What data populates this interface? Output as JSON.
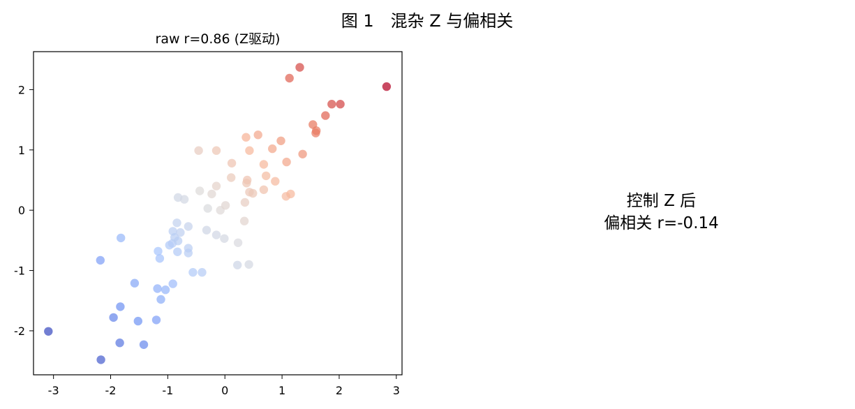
{
  "figure": {
    "title": "图 1　混杂 Z 与偏相关"
  },
  "chart_data": [
    {
      "type": "scatter",
      "title": "raw r=0.86 (Z驱动)",
      "xlabel": "",
      "ylabel": "",
      "xlim": [
        -3.35,
        3.1
      ],
      "ylim": [
        -2.73,
        2.63
      ],
      "xticks": [
        -3,
        -2,
        -1,
        0,
        1,
        2,
        3
      ],
      "yticks": [
        -2,
        -1,
        0,
        1,
        2
      ],
      "xtick_labels": [
        "-3",
        "-2",
        "-1",
        "0",
        "1",
        "2",
        "3"
      ],
      "ytick_labels": [
        "-2",
        "-1",
        "0",
        "1",
        "2"
      ],
      "grid": false,
      "colormap": "coolwarm",
      "colormap_stops": [
        "#3b4cc0",
        "#6f92f3",
        "#aac7fd",
        "#dddcdc",
        "#f7b89c",
        "#e7745b",
        "#b40426"
      ],
      "colormap_range": [
        -2.8,
        2.6
      ],
      "points": [
        {
          "x": -3.09,
          "y": -2.01
        },
        {
          "x": -2.17,
          "y": -2.48
        },
        {
          "x": -1.95,
          "y": -1.78
        },
        {
          "x": -1.84,
          "y": -2.2
        },
        {
          "x": -1.83,
          "y": -1.6
        },
        {
          "x": -2.18,
          "y": -0.83
        },
        {
          "x": -1.82,
          "y": -0.46
        },
        {
          "x": -1.58,
          "y": -1.21
        },
        {
          "x": -1.52,
          "y": -1.84
        },
        {
          "x": -1.42,
          "y": -2.23
        },
        {
          "x": -1.18,
          "y": -1.3
        },
        {
          "x": -1.12,
          "y": -1.48
        },
        {
          "x": -1.2,
          "y": -1.82
        },
        {
          "x": -1.04,
          "y": -1.32
        },
        {
          "x": -0.91,
          "y": -1.22
        },
        {
          "x": -1.17,
          "y": -0.68
        },
        {
          "x": -1.14,
          "y": -0.8
        },
        {
          "x": -0.97,
          "y": -0.58
        },
        {
          "x": -0.92,
          "y": -0.55
        },
        {
          "x": -0.83,
          "y": -0.69
        },
        {
          "x": -0.91,
          "y": -0.35
        },
        {
          "x": -0.88,
          "y": -0.45
        },
        {
          "x": -0.82,
          "y": -0.51
        },
        {
          "x": -0.78,
          "y": -0.37
        },
        {
          "x": -0.84,
          "y": -0.21
        },
        {
          "x": -0.64,
          "y": -0.63
        },
        {
          "x": -0.64,
          "y": -0.71
        },
        {
          "x": -0.64,
          "y": -0.27
        },
        {
          "x": -0.56,
          "y": -1.03
        },
        {
          "x": -0.4,
          "y": -1.03
        },
        {
          "x": -0.82,
          "y": 0.21
        },
        {
          "x": -0.71,
          "y": 0.18
        },
        {
          "x": -0.32,
          "y": -0.33
        },
        {
          "x": -0.15,
          "y": -0.41
        },
        {
          "x": -0.01,
          "y": -0.47
        },
        {
          "x": -0.3,
          "y": 0.03
        },
        {
          "x": -0.08,
          "y": 0.0
        },
        {
          "x": 0.01,
          "y": 0.08
        },
        {
          "x": 0.22,
          "y": -0.91
        },
        {
          "x": 0.42,
          "y": -0.9
        },
        {
          "x": 0.23,
          "y": -0.54
        },
        {
          "x": 0.34,
          "y": -0.18
        },
        {
          "x": -0.23,
          "y": 0.27
        },
        {
          "x": -0.15,
          "y": 0.4
        },
        {
          "x": -0.44,
          "y": 0.32
        },
        {
          "x": 0.11,
          "y": 0.54
        },
        {
          "x": 0.35,
          "y": 0.13
        },
        {
          "x": 0.38,
          "y": 0.45
        },
        {
          "x": 0.39,
          "y": 0.5
        },
        {
          "x": 0.43,
          "y": 0.3
        },
        {
          "x": 0.49,
          "y": 0.28
        },
        {
          "x": 0.68,
          "y": 0.34
        },
        {
          "x": 0.72,
          "y": 0.57
        },
        {
          "x": 0.88,
          "y": 0.48
        },
        {
          "x": 1.07,
          "y": 0.23
        },
        {
          "x": 1.15,
          "y": 0.27
        },
        {
          "x": 0.12,
          "y": 0.78
        },
        {
          "x": 0.68,
          "y": 0.76
        },
        {
          "x": 1.08,
          "y": 0.8
        },
        {
          "x": -0.46,
          "y": 0.99
        },
        {
          "x": -0.15,
          "y": 0.99
        },
        {
          "x": 0.43,
          "y": 0.99
        },
        {
          "x": 0.83,
          "y": 1.02
        },
        {
          "x": 0.37,
          "y": 1.21
        },
        {
          "x": 0.58,
          "y": 1.25
        },
        {
          "x": 0.98,
          "y": 1.15
        },
        {
          "x": 1.36,
          "y": 0.93
        },
        {
          "x": 1.59,
          "y": 1.28
        },
        {
          "x": 1.6,
          "y": 1.32
        },
        {
          "x": 1.54,
          "y": 1.42
        },
        {
          "x": 1.76,
          "y": 1.57
        },
        {
          "x": 1.87,
          "y": 1.76
        },
        {
          "x": 2.02,
          "y": 1.76
        },
        {
          "x": 1.13,
          "y": 2.19
        },
        {
          "x": 1.31,
          "y": 2.37
        },
        {
          "x": 2.83,
          "y": 2.05
        }
      ]
    }
  ],
  "panel_b": {
    "note": "控制 Z 后\n偏相关 r=-0.14"
  }
}
